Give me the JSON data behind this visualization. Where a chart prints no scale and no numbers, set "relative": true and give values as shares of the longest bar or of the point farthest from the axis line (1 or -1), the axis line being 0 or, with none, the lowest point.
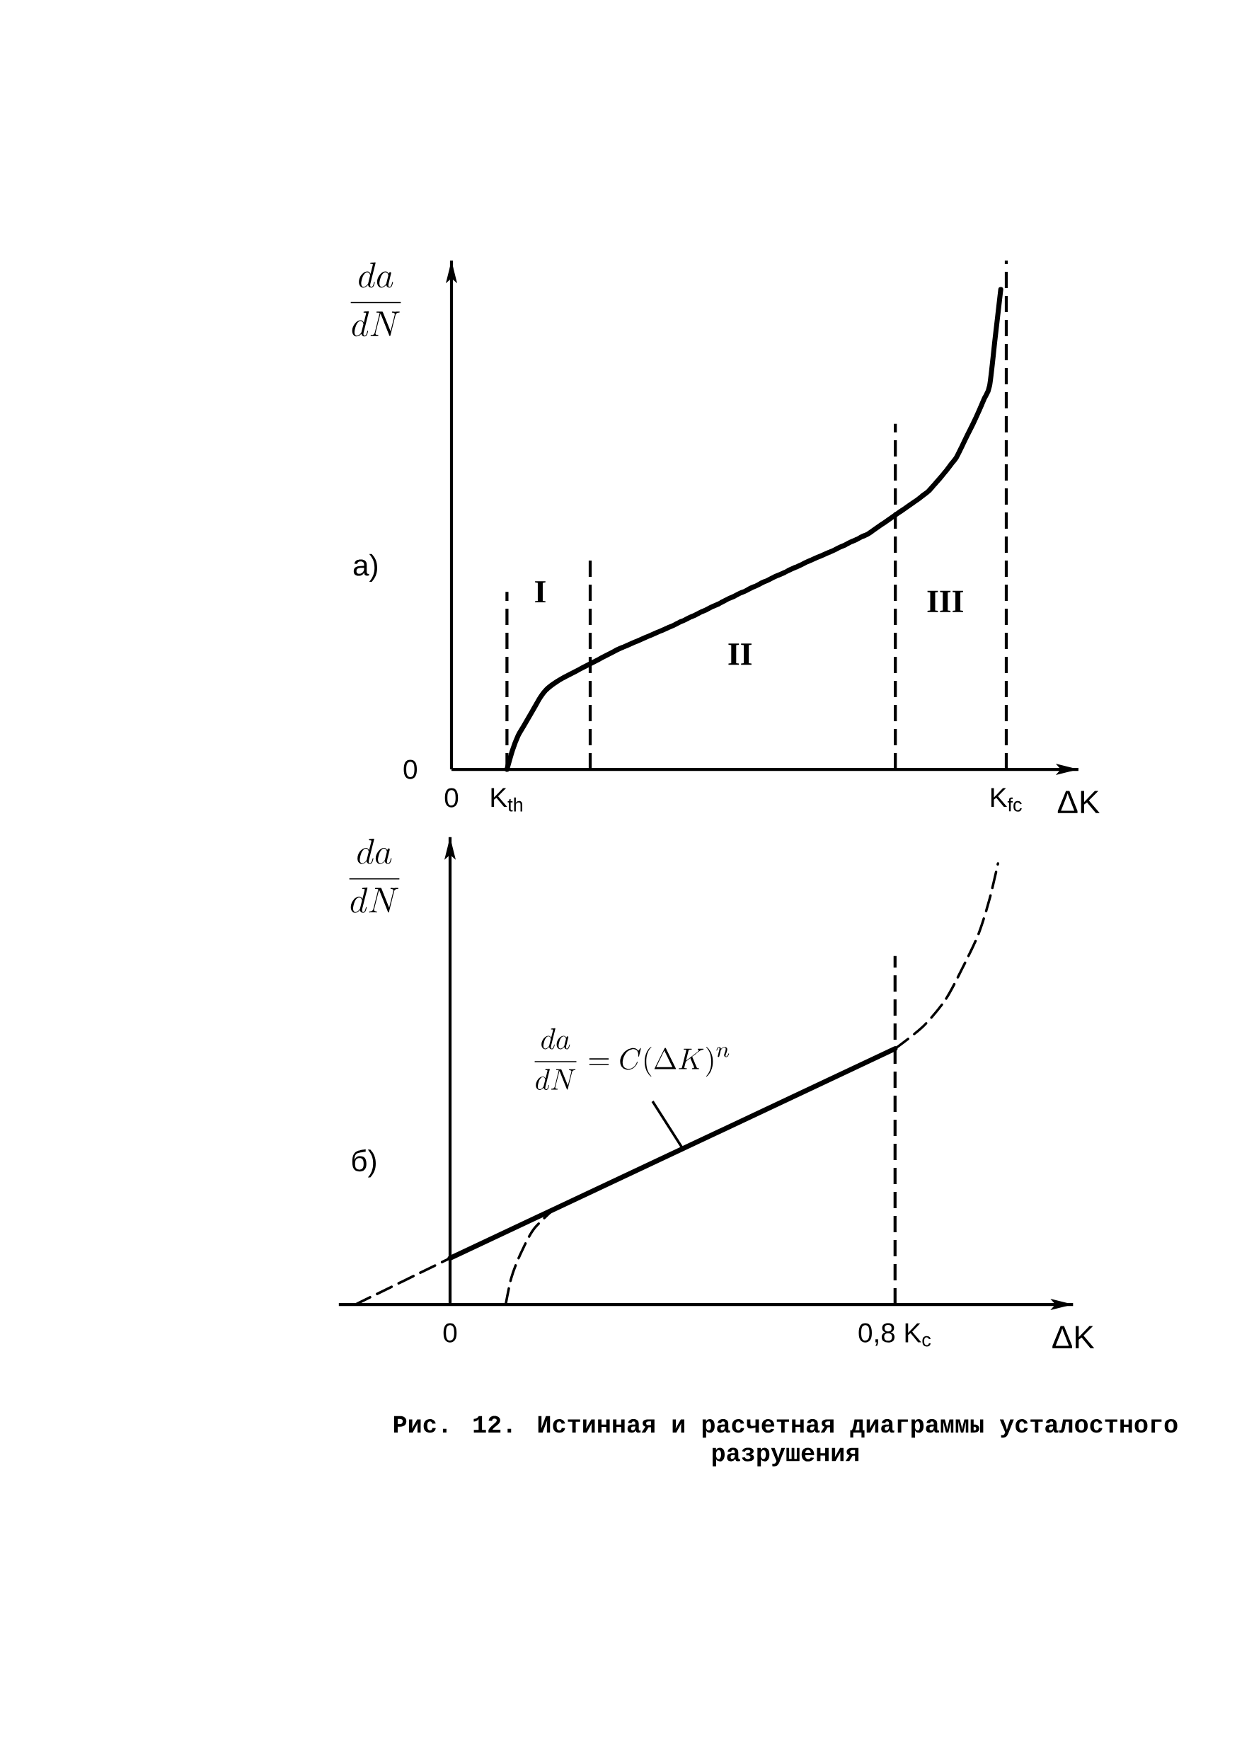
{
  "chart_data": [
    {
      "type": "line",
      "title": "а)",
      "xlabel": "ΔK",
      "ylabel": "\\frac{da}{dN}",
      "relative": true,
      "categories": [
        "0",
        null,
        null,
        null,
        null,
        null,
        null,
        null,
        null,
        null,
        "K$_{th}$",
        null,
        null,
        null,
        null,
        null,
        null,
        null,
        null,
        null,
        null,
        null,
        null,
        null,
        null,
        null,
        null,
        null,
        null,
        null,
        null,
        null,
        null,
        null,
        null,
        null,
        null,
        null,
        null,
        null,
        null,
        null,
        null,
        null,
        null,
        null,
        null,
        null,
        null,
        null,
        null,
        null,
        null,
        null,
        null,
        null,
        null,
        null,
        null,
        null,
        null,
        null,
        null,
        null,
        null,
        null,
        null,
        null,
        null,
        null,
        null,
        null,
        null,
        null,
        null,
        null,
        null,
        null,
        null,
        null,
        null,
        null,
        null,
        null,
        null,
        null,
        null,
        null,
        null,
        null,
        null,
        null,
        null,
        null,
        null,
        null,
        null,
        null,
        null,
        null,
        "K$_{fc}$",
        null,
        null,
        null,
        null,
        null,
        null,
        null,
        null,
        null,
        null,
        null,
        null,
        null
      ],
      "series": [
        {
          "color": "#000000",
          "line_style": "solid",
          "values": [
            null,
            null,
            null,
            null,
            null,
            null,
            null,
            null,
            null,
            null,
            0,
            0.04,
            0.07,
            0.09,
            0.11,
            0.13,
            0.15,
            0.165,
            0.175,
            0.183,
            0.19,
            0.196,
            0.202,
            0.208,
            0.214,
            0.22,
            0.226,
            0.232,
            0.238,
            0.244,
            0.25,
            0.255,
            0.26,
            0.265,
            0.27,
            0.275,
            0.28,
            0.285,
            0.29,
            0.295,
            0.3,
            0.306,
            0.311,
            0.317,
            0.322,
            0.328,
            0.333,
            0.339,
            0.344,
            0.35,
            0.356,
            0.361,
            0.367,
            0.372,
            0.378,
            0.383,
            0.389,
            0.394,
            0.4,
            0.405,
            0.41,
            0.416,
            0.421,
            0.426,
            0.432,
            0.437,
            0.442,
            0.447,
            0.452,
            0.457,
            0.463,
            0.468,
            0.474,
            0.479,
            0.485,
            0.49,
            0.498,
            0.506,
            0.514,
            0.522,
            0.53,
            0.538,
            0.546,
            0.554,
            0.562,
            0.571,
            0.58,
            0.593,
            0.606,
            0.62,
            0.635,
            0.65,
            0.673,
            0.697,
            0.72,
            0.745,
            0.772,
            0.8,
            0.9,
            1,
            null,
            null,
            null,
            null,
            null,
            null,
            null,
            null,
            null,
            null,
            null,
            null,
            null,
            null
          ]
        }
      ],
      "ref_lines": [
        {
          "axis": "x",
          "value": "K$_{th}$",
          "line_style": "dashed"
        },
        {
          "axis": "x",
          "value": "K$_{fc}$",
          "line_style": "dashed"
        }
      ],
      "annotations": [
        "0",
        "I",
        "II",
        "III"
      ]
    },
    {
      "type": "line",
      "title": "б)",
      "xlabel": "ΔK",
      "ylabel": "\\frac{da}{dN}",
      "relative": true,
      "xlim": [
        -0.2,
        1.12
      ],
      "xticks": [
        0,
        {
          "value": 0.8,
          "label": "0,8 K$_{c}$"
        }
      ],
      "series": [
        {
          "color": "#000000",
          "line_style": "solid",
          "x": [
            0,
            0.8
          ],
          "values": [
            0.105,
            0.58
          ]
        },
        {
          "color": "#000000",
          "line_style": "dashed",
          "x": [
            -0.17,
            0
          ],
          "values": [
            0,
            0.105
          ]
        },
        {
          "color": "#000000",
          "line_style": "dashed",
          "x": [
            0.8,
            0.85,
            0.89,
            0.92,
            0.95,
            0.97,
            0.985
          ],
          "values": [
            0.58,
            0.63,
            0.69,
            0.76,
            0.84,
            0.92,
            1
          ]
        },
        {
          "color": "#000000",
          "line_style": "dashed",
          "x": [
            0.1,
            0.11,
            0.125,
            0.15,
            0.19
          ],
          "values": [
            0,
            0.06,
            0.11,
            0.17,
            0.22
          ]
        }
      ],
      "ref_lines": [
        {
          "axis": "x",
          "value": 0.8,
          "line_style": "dashed"
        }
      ],
      "annotations": [
        {
          "text": "\\frac{da}{dN}=C(\\Delta K)^{n}",
          "x": 0.42,
          "y": 0.35
        },
        "Рис. 12. Истинная и расчетная диаграммы усталостного разрушения"
      ]
    }
  ]
}
